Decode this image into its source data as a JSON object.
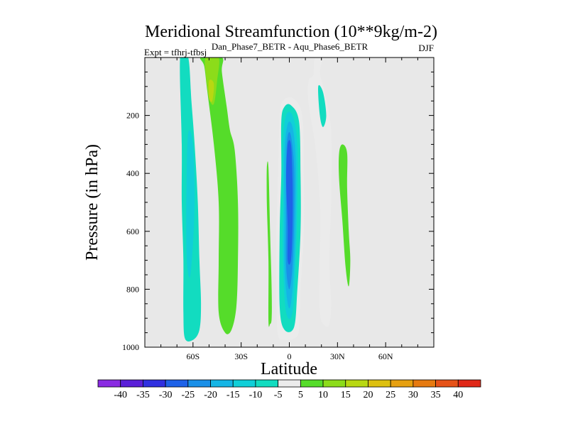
{
  "chart_data": {
    "type": "contour",
    "title": "Meridional Streamfunction (10**9kg/m-2)",
    "subtitle": "Dan_Phase7_BETR - Aqu_Phase6_BETR",
    "left_label": "Expt = tfhrj-tfbsj",
    "right_label": "DJF",
    "xlabel": "Latitude",
    "ylabel": "Pressure (in hPa)",
    "xlim": [
      -90,
      90
    ],
    "ylim": [
      1000,
      0
    ],
    "x_ticks": [
      {
        "value": -60,
        "label": "60S"
      },
      {
        "value": -30,
        "label": "30S"
      },
      {
        "value": 0,
        "label": "0"
      },
      {
        "value": 30,
        "label": "30N"
      },
      {
        "value": 60,
        "label": "60N"
      }
    ],
    "y_ticks": [
      {
        "value": 200,
        "label": "200"
      },
      {
        "value": 400,
        "label": "400"
      },
      {
        "value": 600,
        "label": "600"
      },
      {
        "value": 800,
        "label": "800"
      },
      {
        "value": 1000,
        "label": "1000"
      }
    ],
    "contour_levels": [
      -40,
      -35,
      -30,
      -25,
      -20,
      -15,
      -10,
      -5,
      5,
      10,
      15,
      20,
      25,
      30,
      35,
      40
    ],
    "colorbar_labels": [
      "-40",
      "-35",
      "-30",
      "-25",
      "-20",
      "-15",
      "-10",
      "-5",
      "5",
      "10",
      "15",
      "20",
      "25",
      "30",
      "35",
      "40"
    ],
    "colorbar_colors": [
      "#8a2be2",
      "#5a1fd8",
      "#3030e0",
      "#1e62e8",
      "#1a90e8",
      "#15b5e5",
      "#10cfd8",
      "#12dcc0",
      "#ebebeb",
      "#55dc2a",
      "#8cdc1a",
      "#b8d812",
      "#ddc010",
      "#e6a010",
      "#e67a10",
      "#e65218",
      "#e02818"
    ],
    "background_color": "#e8e8e8",
    "regions": [
      {
        "name": "sh-midlat-negative-cell",
        "level": -10,
        "points": [
          [
            -68,
            0
          ],
          [
            -63,
            0
          ],
          [
            -61,
            150
          ],
          [
            -59,
            300
          ],
          [
            -57,
            500
          ],
          [
            -56,
            700
          ],
          [
            -55,
            850
          ],
          [
            -56,
            940
          ],
          [
            -60,
            975
          ],
          [
            -65,
            970
          ],
          [
            -66,
            880
          ],
          [
            -66,
            700
          ],
          [
            -67,
            500
          ],
          [
            -67,
            300
          ]
        ]
      },
      {
        "name": "sh-midlat-negative-core",
        "level": -15,
        "points": [
          [
            -63,
            260
          ],
          [
            -60,
            300
          ],
          [
            -59,
            480
          ],
          [
            -60,
            640
          ],
          [
            -62,
            760
          ],
          [
            -64,
            680
          ],
          [
            -64,
            440
          ]
        ]
      },
      {
        "name": "sh-positive-band",
        "level": 5,
        "points": [
          [
            -55,
            0
          ],
          [
            -42,
            0
          ],
          [
            -42,
            50
          ],
          [
            -39,
            170
          ],
          [
            -37,
            250
          ],
          [
            -34,
            320
          ],
          [
            -32,
            500
          ],
          [
            -32,
            700
          ],
          [
            -33,
            860
          ],
          [
            -36,
            940
          ],
          [
            -40,
            950
          ],
          [
            -44,
            880
          ],
          [
            -44,
            700
          ],
          [
            -44,
            500
          ],
          [
            -47,
            300
          ],
          [
            -51,
            120
          ],
          [
            -53,
            30
          ]
        ]
      },
      {
        "name": "sh-positive-core",
        "level": 10,
        "points": [
          [
            -52,
            0
          ],
          [
            -44,
            0
          ],
          [
            -45,
            80
          ],
          [
            -47,
            160
          ],
          [
            -50,
            140
          ],
          [
            -52,
            60
          ]
        ]
      },
      {
        "name": "sh-positive-peak",
        "level": 15,
        "points": [
          [
            -50,
            80
          ],
          [
            -47,
            90
          ],
          [
            -48,
            150
          ],
          [
            -50,
            140
          ]
        ]
      },
      {
        "name": "subtropical-positive-strip",
        "level": 5,
        "points": [
          [
            -14,
            380
          ],
          [
            -13,
            380
          ],
          [
            -12,
            600
          ],
          [
            -11,
            800
          ],
          [
            -11,
            900
          ],
          [
            -12,
            920
          ],
          [
            -13,
            910
          ],
          [
            -13,
            700
          ],
          [
            -14,
            500
          ]
        ]
      },
      {
        "name": "hadley-negative-outer",
        "level": -5,
        "points": [
          [
            -4,
            150
          ],
          [
            2,
            140
          ],
          [
            8,
            200
          ],
          [
            9,
            400
          ],
          [
            9,
            600
          ],
          [
            7,
            800
          ],
          [
            6,
            940
          ],
          [
            3,
            970
          ],
          [
            -3,
            975
          ],
          [
            -7,
            960
          ],
          [
            -8,
            850
          ],
          [
            -8,
            600
          ],
          [
            -7,
            400
          ],
          [
            -6,
            200
          ]
        ]
      },
      {
        "name": "hadley-negative-10",
        "level": -10,
        "points": [
          [
            -3,
            170
          ],
          [
            1,
            165
          ],
          [
            6,
            220
          ],
          [
            7,
            400
          ],
          [
            7,
            600
          ],
          [
            5,
            800
          ],
          [
            3,
            930
          ],
          [
            -3,
            940
          ],
          [
            -6,
            860
          ],
          [
            -6,
            600
          ],
          [
            -5,
            400
          ],
          [
            -5,
            220
          ]
        ]
      },
      {
        "name": "hadley-negative-15",
        "level": -15,
        "points": [
          [
            -2,
            200
          ],
          [
            2,
            200
          ],
          [
            5,
            300
          ],
          [
            5,
            500
          ],
          [
            4,
            700
          ],
          [
            2,
            880
          ],
          [
            -2,
            880
          ],
          [
            -4,
            700
          ],
          [
            -4,
            500
          ],
          [
            -4,
            300
          ]
        ]
      },
      {
        "name": "hadley-negative-20",
        "level": -20,
        "points": [
          [
            -1,
            230
          ],
          [
            2,
            240
          ],
          [
            4,
            350
          ],
          [
            4,
            550
          ],
          [
            3,
            720
          ],
          [
            1,
            850
          ],
          [
            -1,
            850
          ],
          [
            -3,
            720
          ],
          [
            -3,
            550
          ],
          [
            -3,
            330
          ]
        ]
      },
      {
        "name": "hadley-negative-25",
        "level": -25,
        "points": [
          [
            -1,
            270
          ],
          [
            1,
            270
          ],
          [
            3,
            380
          ],
          [
            3,
            560
          ],
          [
            2,
            720
          ],
          [
            0,
            800
          ],
          [
            -2,
            720
          ],
          [
            -2,
            550
          ],
          [
            -2,
            360
          ]
        ]
      },
      {
        "name": "hadley-negative-30",
        "level": -30,
        "points": [
          [
            -1,
            300
          ],
          [
            1,
            300
          ],
          [
            2,
            420
          ],
          [
            2,
            580
          ],
          [
            1,
            700
          ],
          [
            -1,
            700
          ],
          [
            -1,
            580
          ],
          [
            -2,
            420
          ]
        ]
      },
      {
        "name": "nh-negative-cell",
        "level": -5,
        "points": [
          [
            16,
            0
          ],
          [
            21,
            0
          ],
          [
            19,
            50
          ],
          [
            22,
            120
          ],
          [
            26,
            250
          ],
          [
            26,
            500
          ],
          [
            25,
            700
          ],
          [
            26,
            850
          ],
          [
            25,
            920
          ],
          [
            22,
            925
          ],
          [
            19,
            880
          ],
          [
            19,
            700
          ],
          [
            19,
            500
          ],
          [
            16,
            300
          ],
          [
            12,
            160
          ],
          [
            12,
            80
          ],
          [
            15,
            60
          ]
        ]
      },
      {
        "name": "nh-negative-core",
        "level": -10,
        "points": [
          [
            18,
            100
          ],
          [
            21,
            120
          ],
          [
            23,
            200
          ],
          [
            21,
            240
          ],
          [
            19,
            200
          ]
        ]
      },
      {
        "name": "nh-positive-cell",
        "level": 5,
        "points": [
          [
            31,
            330
          ],
          [
            33,
            300
          ],
          [
            36,
            330
          ],
          [
            36,
            450
          ],
          [
            37,
            600
          ],
          [
            38,
            700
          ],
          [
            37,
            790
          ],
          [
            35,
            720
          ],
          [
            33,
            560
          ],
          [
            31,
            420
          ]
        ]
      }
    ]
  }
}
